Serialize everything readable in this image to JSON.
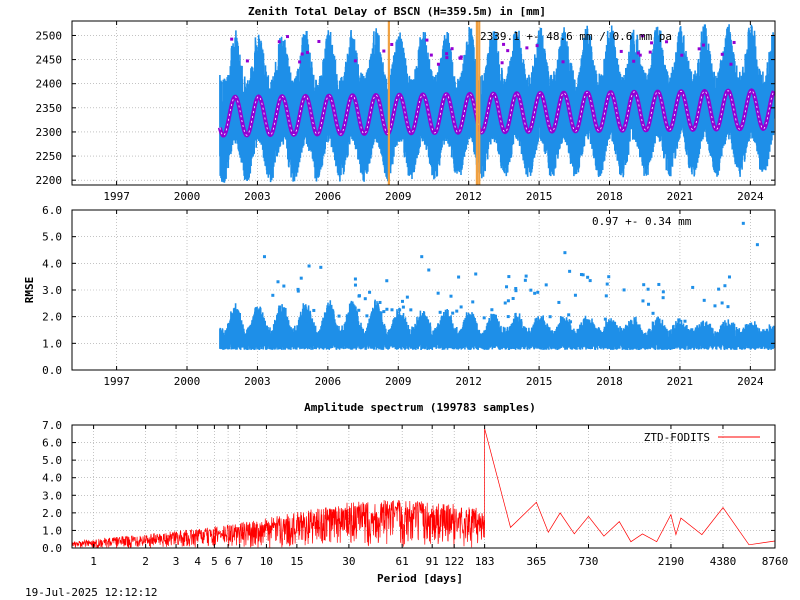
{
  "timestamp": "19-Jul-2025 12:12:12",
  "colors": {
    "observations": "#1e8fe8",
    "model": "#9400d3",
    "breaks": "#f0a040",
    "spectrum": "#ff0000"
  },
  "chart_data": [
    {
      "type": "scatter",
      "title": "Zenith Total Delay of BSCN (H=359.5m) in [mm]",
      "annotation": "2339.1 +-  48.6 mm /  0.6 mm pa",
      "xlabel": "",
      "ylabel": "",
      "xlim": [
        1995.6,
        2025.55
      ],
      "ylim": [
        2190,
        2530
      ],
      "x_ticks": [
        "1997",
        "2000",
        "2003",
        "2006",
        "2009",
        "2012",
        "2015",
        "2018",
        "2021",
        "2024"
      ],
      "y_ticks": [
        "2200",
        "2250",
        "2300",
        "2350",
        "2400",
        "2450",
        "2500"
      ],
      "data_start": 2001.9,
      "data_end": 2025.5,
      "mean_mm": 2339.1,
      "std_mm": 48.6,
      "trend_mm_per_year": 0.6,
      "seasonal_amplitude_mm": 40,
      "observation_range_mm": [
        2210,
        2500
      ],
      "break_epochs": [
        2009.1,
        2012.85,
        2012.95
      ],
      "grid": true
    },
    {
      "type": "scatter",
      "title": "",
      "annotation": "0.97 +-  0.34 mm",
      "xlabel": "",
      "ylabel": "RMSE",
      "xlim": [
        1995.6,
        2025.55
      ],
      "ylim": [
        0,
        6
      ],
      "x_ticks": [
        "1997",
        "2000",
        "2003",
        "2006",
        "2009",
        "2012",
        "2015",
        "2018",
        "2021",
        "2024"
      ],
      "y_ticks": [
        "0.0",
        "1.0",
        "2.0",
        "3.0",
        "4.0",
        "5.0",
        "6.0"
      ],
      "mean": 0.97,
      "std": 0.34,
      "outliers": [
        [
          2003.8,
          4.25
        ],
        [
          2005.7,
          3.9
        ],
        [
          2006.2,
          3.85
        ],
        [
          2010.5,
          4.25
        ],
        [
          2010.8,
          3.75
        ],
        [
          2012.8,
          3.6
        ],
        [
          2016.6,
          4.4
        ],
        [
          2016.8,
          3.7
        ],
        [
          2024.2,
          5.5
        ],
        [
          2024.8,
          4.7
        ]
      ],
      "grid": true
    },
    {
      "type": "line",
      "title": "Amplitude spectrum (199783 samples)",
      "xlabel": "Period [days]",
      "ylabel": "",
      "legend": "ZTD-FODITS",
      "legend_position": "top-right",
      "xscale": "log",
      "xlim": [
        0.75,
        8760
      ],
      "ylim": [
        0,
        7
      ],
      "x_ticks": [
        "1",
        "2",
        "3",
        "4",
        "5",
        "6",
        "7",
        "10",
        "15",
        "30",
        "61",
        "91",
        "122",
        "183",
        "365",
        "730",
        "2190",
        "4380",
        "8760"
      ],
      "x_tick_values": [
        1,
        2,
        3,
        4,
        5,
        6,
        7,
        10,
        15,
        30,
        61,
        91,
        122,
        183,
        365,
        730,
        2190,
        4380,
        8760
      ],
      "y_ticks": [
        "0.0",
        "1.0",
        "2.0",
        "3.0",
        "4.0",
        "5.0",
        "6.0",
        "7.0"
      ],
      "envelope": [
        [
          0.75,
          0.35
        ],
        [
          1,
          0.5
        ],
        [
          2,
          0.8
        ],
        [
          5,
          1.2
        ],
        [
          10,
          1.7
        ],
        [
          20,
          2.3
        ],
        [
          30,
          2.6
        ],
        [
          61,
          2.8
        ],
        [
          91,
          2.6
        ],
        [
          122,
          2.5
        ],
        [
          183,
          2.2
        ]
      ],
      "peaks": [
        [
          183,
          6.8
        ],
        [
          365,
          2.6
        ],
        [
          500,
          2.0
        ],
        [
          730,
          1.8
        ],
        [
          1100,
          1.5
        ],
        [
          1500,
          0.8
        ],
        [
          2190,
          1.9
        ],
        [
          2500,
          1.7
        ],
        [
          4380,
          2.3
        ],
        [
          8760,
          0.4
        ]
      ],
      "grid": true
    }
  ]
}
